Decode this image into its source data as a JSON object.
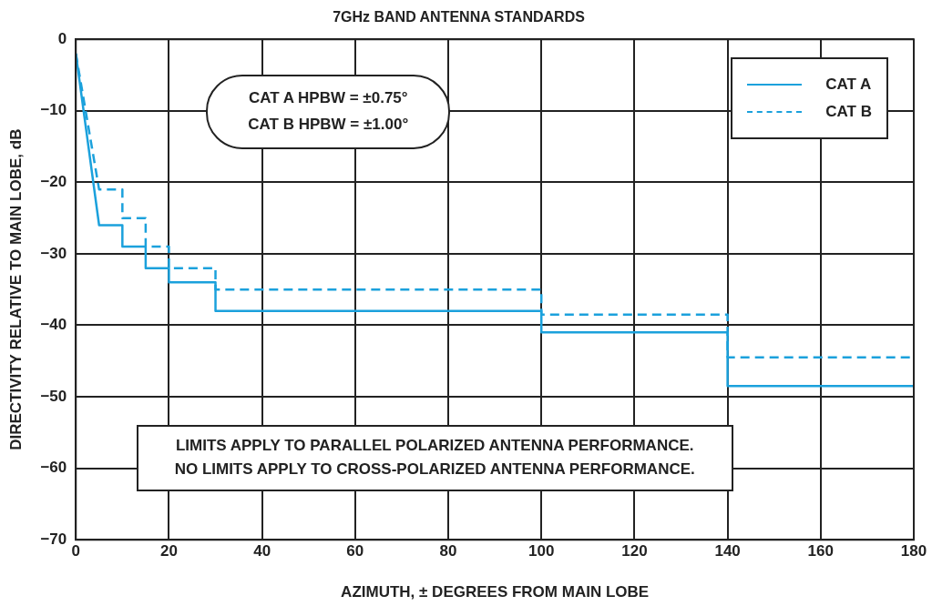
{
  "chart_data": {
    "type": "line",
    "title": "7GHz BAND ANTENNA STANDARDS",
    "xlabel": "AZIMUTH, ± DEGREES FROM MAIN LOBE",
    "ylabel": "DIRECTIVITY RELATIVE TO MAIN LOBE, dB",
    "series": [
      {
        "name": "CAT A",
        "color": "#1ba1dc",
        "line_style": "solid",
        "x": [
          0,
          5,
          10,
          10,
          15,
          15,
          20,
          20,
          30,
          30,
          100,
          100,
          140,
          140,
          180
        ],
        "values": [
          -2,
          -26,
          -26,
          -29,
          -29,
          -32,
          -32,
          -34,
          -34,
          -38,
          -38,
          -41,
          -41,
          -48.5,
          -48.5
        ]
      },
      {
        "name": "CAT B",
        "color": "#1ba1dc",
        "line_style": "dashed",
        "x": [
          0,
          5,
          10,
          10,
          15,
          15,
          20,
          20,
          30,
          30,
          100,
          100,
          140,
          140,
          180
        ],
        "values": [
          -2,
          -21,
          -21,
          -25,
          -25,
          -29,
          -29,
          -32,
          -32,
          -35,
          -35,
          -38.5,
          -38.5,
          -44.5,
          -44.5
        ]
      }
    ],
    "xlim": [
      0,
      180
    ],
    "xticks": [
      0,
      20,
      40,
      60,
      80,
      100,
      120,
      140,
      160,
      180
    ],
    "ylim": [
      -70,
      0
    ],
    "yticks": [
      -70,
      -60,
      -50,
      -40,
      -30,
      -20,
      -10,
      0
    ],
    "grid": true,
    "legend": "top right",
    "marker": "none",
    "annotations": [
      "CAT A HPBW = ±0.75°\nCAT B HPBW = ±1.00°",
      "LIMITS APPLY TO PARALLEL POLARIZED ANTENNA PERFORMANCE.\nNO LIMITS APPLY TO CROSS-POLARIZED ANTENNA PERFORMANCE."
    ]
  }
}
